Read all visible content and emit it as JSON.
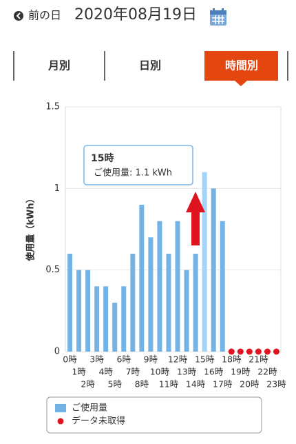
{
  "header": {
    "back": "前の日",
    "date": "2020年08月19日"
  },
  "tabs": {
    "items": [
      "月別",
      "日別",
      "時間別"
    ],
    "active": "時間別"
  },
  "chart_data": {
    "type": "bar",
    "y_label": "使用量（kWh）",
    "categories": [
      "0時",
      "1時",
      "2時",
      "3時",
      "4時",
      "5時",
      "6時",
      "7時",
      "8時",
      "9時",
      "10時",
      "11時",
      "12時",
      "13時",
      "14時",
      "15時",
      "16時",
      "17時",
      "18時",
      "19時",
      "20時",
      "21時",
      "22時",
      "23時"
    ],
    "series": [
      {
        "name": "ご使用量",
        "color": "#74b3e6",
        "marker": "square",
        "values": [
          0.6,
          0.5,
          0.5,
          0.4,
          0.4,
          0.3,
          0.4,
          0.6,
          0.9,
          0.7,
          0.8,
          0.6,
          0.8,
          0.5,
          0.6,
          1.1,
          1.0,
          0.8,
          null,
          null,
          null,
          null,
          null,
          null
        ]
      },
      {
        "name": "データ未取得",
        "color": "#e0141e",
        "marker": "circle",
        "values": [
          null,
          null,
          null,
          null,
          null,
          null,
          null,
          null,
          null,
          null,
          null,
          null,
          null,
          null,
          null,
          null,
          null,
          null,
          0,
          0,
          0,
          0,
          0,
          0
        ]
      }
    ],
    "highlight_color": "#a6d4f6",
    "ylim": [
      0,
      1.5
    ],
    "yticks": [
      0,
      0.5,
      1,
      1.5
    ],
    "grid": true,
    "tooltip": {
      "title": "15時",
      "text": "ご使用量: 1.1 kWh"
    }
  }
}
